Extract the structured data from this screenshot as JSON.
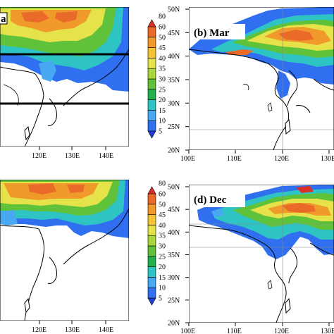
{
  "panels": [
    {
      "id": "a",
      "title": "",
      "visible_title_fragment": "a"
    },
    {
      "id": "b",
      "title": "(b) Mar"
    },
    {
      "id": "c",
      "title": ""
    },
    {
      "id": "d",
      "title": "(d) Dec"
    }
  ],
  "colorbar": {
    "levels": [
      "5",
      "10",
      "15",
      "20",
      "25",
      "30",
      "35",
      "40",
      "45",
      "50",
      "60",
      "80"
    ],
    "colors": [
      "#1f3fd6",
      "#2f6ff0",
      "#49a8f2",
      "#2ec4c4",
      "#23b04c",
      "#5fc23a",
      "#a6d63c",
      "#e6e24a",
      "#f4c433",
      "#f19a2c",
      "#ea6a2a",
      "#d9312a"
    ]
  },
  "left_axes": {
    "x_labels": [
      "120E",
      "130E",
      "140E"
    ]
  },
  "right_axes": {
    "x_labels": [
      "100E",
      "110E",
      "120E",
      "130E"
    ],
    "y_labels_top": [
      "20N",
      "25N",
      "30N",
      "35N",
      "40N",
      "45N",
      "50N"
    ],
    "y_labels_bottom": [
      "20N",
      "25N",
      "30N",
      "35N",
      "40N",
      "45N",
      "50N"
    ]
  }
}
